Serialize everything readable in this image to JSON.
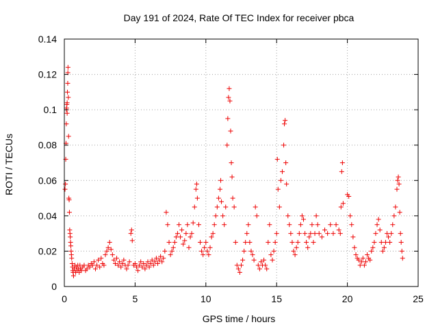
{
  "chart_data": {
    "type": "scatter",
    "title": "Day 191 of 2024, Rate Of TEC Index for receiver pbca",
    "xlabel": "GPS time / hours",
    "ylabel": "ROTI / TECUs",
    "xlim": [
      0,
      25
    ],
    "ylim": [
      0,
      0.14
    ],
    "grid": true,
    "marker": "+",
    "marker_color": "#ee0000",
    "x_ticks": [
      0,
      5,
      10,
      15,
      20,
      25
    ],
    "x_tick_labels": [
      "0",
      "5",
      "10",
      "15",
      "20",
      "25"
    ],
    "y_ticks": [
      0,
      0.02,
      0.04,
      0.06,
      0.08,
      0.1,
      0.12,
      0.14
    ],
    "y_tick_labels": [
      "0",
      "0.02",
      "0.04",
      "0.06",
      "0.08",
      "0.1",
      "0.12",
      "0.14"
    ],
    "series": [
      {
        "name": "ROTI",
        "points": [
          [
            0.05,
            0.055
          ],
          [
            0.08,
            0.058
          ],
          [
            0.1,
            0.072
          ],
          [
            0.12,
            0.081
          ],
          [
            0.14,
            0.092
          ],
          [
            0.15,
            0.1
          ],
          [
            0.16,
            0.101
          ],
          [
            0.18,
            0.103
          ],
          [
            0.2,
            0.104
          ],
          [
            0.2,
            0.098
          ],
          [
            0.22,
            0.11
          ],
          [
            0.24,
            0.115
          ],
          [
            0.25,
            0.121
          ],
          [
            0.26,
            0.124
          ],
          [
            0.28,
            0.107
          ],
          [
            0.3,
            0.085
          ],
          [
            0.32,
            0.05
          ],
          [
            0.34,
            0.049
          ],
          [
            0.36,
            0.042
          ],
          [
            0.38,
            0.032
          ],
          [
            0.4,
            0.03
          ],
          [
            0.42,
            0.028
          ],
          [
            0.44,
            0.025
          ],
          [
            0.46,
            0.023
          ],
          [
            0.48,
            0.02
          ],
          [
            0.5,
            0.018
          ],
          [
            0.52,
            0.016
          ],
          [
            0.55,
            0.013
          ],
          [
            0.58,
            0.011
          ],
          [
            0.6,
            0.009
          ],
          [
            0.62,
            0.008
          ],
          [
            0.65,
            0.006
          ],
          [
            0.7,
            0.01
          ],
          [
            0.75,
            0.012
          ],
          [
            0.8,
            0.008
          ],
          [
            0.85,
            0.011
          ],
          [
            0.9,
            0.009
          ],
          [
            0.95,
            0.012
          ],
          [
            1.0,
            0.01
          ],
          [
            1.05,
            0.008
          ],
          [
            1.1,
            0.012
          ],
          [
            1.15,
            0.01
          ],
          [
            1.2,
            0.009
          ],
          [
            1.3,
            0.011
          ],
          [
            1.4,
            0.012
          ],
          [
            1.5,
            0.009
          ],
          [
            1.6,
            0.01
          ],
          [
            1.7,
            0.012
          ],
          [
            1.8,
            0.011
          ],
          [
            1.9,
            0.013
          ],
          [
            2.0,
            0.012
          ],
          [
            2.1,
            0.014
          ],
          [
            2.2,
            0.01
          ],
          [
            2.3,
            0.012
          ],
          [
            2.4,
            0.015
          ],
          [
            2.5,
            0.011
          ],
          [
            2.6,
            0.016
          ],
          [
            2.7,
            0.013
          ],
          [
            2.8,
            0.012
          ],
          [
            2.9,
            0.018
          ],
          [
            3.0,
            0.02
          ],
          [
            3.1,
            0.022
          ],
          [
            3.2,
            0.025
          ],
          [
            3.3,
            0.021
          ],
          [
            3.4,
            0.018
          ],
          [
            3.5,
            0.015
          ],
          [
            3.6,
            0.013
          ],
          [
            3.7,
            0.016
          ],
          [
            3.8,
            0.012
          ],
          [
            3.9,
            0.014
          ],
          [
            4.0,
            0.011
          ],
          [
            4.1,
            0.013
          ],
          [
            4.2,
            0.015
          ],
          [
            4.3,
            0.012
          ],
          [
            4.4,
            0.01
          ],
          [
            4.5,
            0.012
          ],
          [
            4.6,
            0.014
          ],
          [
            4.7,
            0.03
          ],
          [
            4.75,
            0.032
          ],
          [
            4.8,
            0.026
          ],
          [
            4.9,
            0.012
          ],
          [
            5.0,
            0.013
          ],
          [
            5.1,
            0.011
          ],
          [
            5.2,
            0.009
          ],
          [
            5.3,
            0.012
          ],
          [
            5.4,
            0.014
          ],
          [
            5.5,
            0.011
          ],
          [
            5.6,
            0.013
          ],
          [
            5.7,
            0.01
          ],
          [
            5.8,
            0.012
          ],
          [
            5.9,
            0.014
          ],
          [
            6.0,
            0.011
          ],
          [
            6.1,
            0.013
          ],
          [
            6.2,
            0.015
          ],
          [
            6.3,
            0.012
          ],
          [
            6.4,
            0.014
          ],
          [
            6.5,
            0.016
          ],
          [
            6.6,
            0.013
          ],
          [
            6.7,
            0.015
          ],
          [
            6.8,
            0.017
          ],
          [
            6.9,
            0.014
          ],
          [
            7.0,
            0.016
          ],
          [
            7.1,
            0.02
          ],
          [
            7.2,
            0.042
          ],
          [
            7.3,
            0.035
          ],
          [
            7.4,
            0.025
          ],
          [
            7.5,
            0.018
          ],
          [
            7.6,
            0.02
          ],
          [
            7.7,
            0.022
          ],
          [
            7.8,
            0.025
          ],
          [
            7.9,
            0.028
          ],
          [
            8.0,
            0.03
          ],
          [
            8.1,
            0.035
          ],
          [
            8.2,
            0.028
          ],
          [
            8.3,
            0.032
          ],
          [
            8.4,
            0.024
          ],
          [
            8.5,
            0.026
          ],
          [
            8.6,
            0.03
          ],
          [
            8.7,
            0.035
          ],
          [
            8.8,
            0.022
          ],
          [
            8.9,
            0.028
          ],
          [
            9.0,
            0.03
          ],
          [
            9.1,
            0.036
          ],
          [
            9.2,
            0.045
          ],
          [
            9.3,
            0.055
          ],
          [
            9.35,
            0.058
          ],
          [
            9.4,
            0.05
          ],
          [
            9.5,
            0.035
          ],
          [
            9.6,
            0.025
          ],
          [
            9.7,
            0.02
          ],
          [
            9.8,
            0.018
          ],
          [
            9.9,
            0.022
          ],
          [
            10.0,
            0.025
          ],
          [
            10.1,
            0.02
          ],
          [
            10.2,
            0.018
          ],
          [
            10.3,
            0.022
          ],
          [
            10.4,
            0.028
          ],
          [
            10.5,
            0.03
          ],
          [
            10.6,
            0.035
          ],
          [
            10.7,
            0.04
          ],
          [
            10.8,
            0.045
          ],
          [
            10.9,
            0.05
          ],
          [
            11.0,
            0.055
          ],
          [
            11.05,
            0.06
          ],
          [
            11.1,
            0.048
          ],
          [
            11.2,
            0.04
          ],
          [
            11.3,
            0.035
          ],
          [
            11.4,
            0.045
          ],
          [
            11.5,
            0.08
          ],
          [
            11.55,
            0.095
          ],
          [
            11.6,
            0.107
          ],
          [
            11.65,
            0.112
          ],
          [
            11.7,
            0.105
          ],
          [
            11.75,
            0.088
          ],
          [
            11.8,
            0.07
          ],
          [
            11.85,
            0.062
          ],
          [
            11.9,
            0.05
          ],
          [
            12.0,
            0.045
          ],
          [
            12.1,
            0.025
          ],
          [
            12.2,
            0.012
          ],
          [
            12.3,
            0.01
          ],
          [
            12.4,
            0.008
          ],
          [
            12.5,
            0.012
          ],
          [
            12.6,
            0.015
          ],
          [
            12.7,
            0.02
          ],
          [
            12.8,
            0.025
          ],
          [
            12.9,
            0.03
          ],
          [
            13.0,
            0.035
          ],
          [
            13.1,
            0.025
          ],
          [
            13.2,
            0.02
          ],
          [
            13.3,
            0.018
          ],
          [
            13.4,
            0.015
          ],
          [
            13.5,
            0.045
          ],
          [
            13.6,
            0.04
          ],
          [
            13.7,
            0.012
          ],
          [
            13.8,
            0.01
          ],
          [
            13.9,
            0.014
          ],
          [
            14.0,
            0.012
          ],
          [
            14.1,
            0.015
          ],
          [
            14.2,
            0.012
          ],
          [
            14.3,
            0.01
          ],
          [
            14.4,
            0.025
          ],
          [
            14.5,
            0.035
          ],
          [
            14.6,
            0.018
          ],
          [
            14.7,
            0.015
          ],
          [
            14.8,
            0.02
          ],
          [
            14.9,
            0.025
          ],
          [
            15.0,
            0.03
          ],
          [
            15.05,
            0.072
          ],
          [
            15.1,
            0.055
          ],
          [
            15.2,
            0.045
          ],
          [
            15.3,
            0.06
          ],
          [
            15.4,
            0.065
          ],
          [
            15.5,
            0.08
          ],
          [
            15.55,
            0.092
          ],
          [
            15.6,
            0.094
          ],
          [
            15.65,
            0.07
          ],
          [
            15.7,
            0.058
          ],
          [
            15.8,
            0.04
          ],
          [
            15.9,
            0.035
          ],
          [
            16.0,
            0.03
          ],
          [
            16.1,
            0.025
          ],
          [
            16.2,
            0.02
          ],
          [
            16.3,
            0.018
          ],
          [
            16.4,
            0.022
          ],
          [
            16.5,
            0.025
          ],
          [
            16.6,
            0.03
          ],
          [
            16.7,
            0.035
          ],
          [
            16.8,
            0.04
          ],
          [
            16.9,
            0.038
          ],
          [
            17.0,
            0.03
          ],
          [
            17.1,
            0.025
          ],
          [
            17.2,
            0.022
          ],
          [
            17.3,
            0.028
          ],
          [
            17.4,
            0.03
          ],
          [
            17.5,
            0.035
          ],
          [
            17.6,
            0.025
          ],
          [
            17.7,
            0.03
          ],
          [
            17.8,
            0.04
          ],
          [
            17.9,
            0.035
          ],
          [
            18.0,
            0.03
          ],
          [
            18.2,
            0.028
          ],
          [
            18.4,
            0.032
          ],
          [
            18.6,
            0.03
          ],
          [
            18.8,
            0.035
          ],
          [
            19.0,
            0.03
          ],
          [
            19.2,
            0.035
          ],
          [
            19.4,
            0.032
          ],
          [
            19.5,
            0.03
          ],
          [
            19.55,
            0.045
          ],
          [
            19.6,
            0.065
          ],
          [
            19.65,
            0.07
          ],
          [
            19.7,
            0.047
          ],
          [
            20.0,
            0.052
          ],
          [
            20.1,
            0.051
          ],
          [
            20.2,
            0.04
          ],
          [
            20.3,
            0.035
          ],
          [
            20.4,
            0.028
          ],
          [
            20.5,
            0.022
          ],
          [
            20.6,
            0.018
          ],
          [
            20.7,
            0.016
          ],
          [
            20.8,
            0.015
          ],
          [
            20.9,
            0.012
          ],
          [
            21.0,
            0.014
          ],
          [
            21.1,
            0.016
          ],
          [
            21.2,
            0.012
          ],
          [
            21.3,
            0.014
          ],
          [
            21.4,
            0.018
          ],
          [
            21.5,
            0.016
          ],
          [
            21.6,
            0.015
          ],
          [
            21.7,
            0.02
          ],
          [
            21.8,
            0.022
          ],
          [
            21.9,
            0.025
          ],
          [
            22.0,
            0.03
          ],
          [
            22.1,
            0.035
          ],
          [
            22.2,
            0.038
          ],
          [
            22.3,
            0.032
          ],
          [
            22.4,
            0.025
          ],
          [
            22.5,
            0.02
          ],
          [
            22.6,
            0.022
          ],
          [
            22.7,
            0.025
          ],
          [
            22.8,
            0.03
          ],
          [
            22.9,
            0.028
          ],
          [
            23.0,
            0.025
          ],
          [
            23.1,
            0.03
          ],
          [
            23.2,
            0.035
          ],
          [
            23.3,
            0.04
          ],
          [
            23.4,
            0.045
          ],
          [
            23.5,
            0.055
          ],
          [
            23.55,
            0.06
          ],
          [
            23.6,
            0.062
          ],
          [
            23.65,
            0.058
          ],
          [
            23.7,
            0.042
          ],
          [
            23.75,
            0.03
          ],
          [
            23.8,
            0.025
          ],
          [
            23.85,
            0.02
          ],
          [
            23.9,
            0.016
          ]
        ]
      }
    ]
  }
}
